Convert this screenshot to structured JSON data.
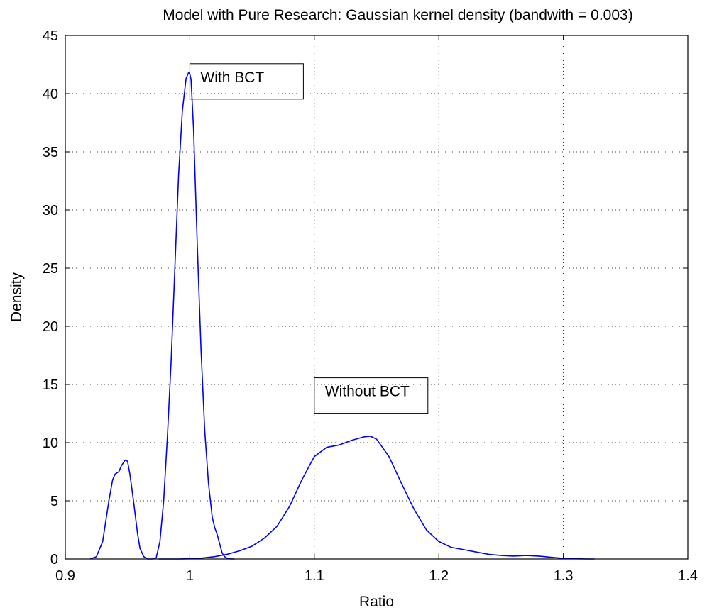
{
  "chart_data": {
    "type": "line",
    "title": "Model with Pure Research: Gaussian kernel density (bandwith = 0.003)",
    "xlabel": "Ratio",
    "ylabel": "Density",
    "xlim": [
      0.9,
      1.4
    ],
    "ylim": [
      0,
      45
    ],
    "xticks": [
      "0.9",
      "1",
      "1.1",
      "1.2",
      "1.3",
      "1.4"
    ],
    "yticks": [
      "0",
      "5",
      "10",
      "15",
      "20",
      "25",
      "30",
      "35",
      "40",
      "45"
    ],
    "grid": true,
    "line_color": "#0000ff",
    "annotations": [
      {
        "text": "With BCT",
        "x": 1.0,
        "y": 40.5
      },
      {
        "text": "Without BCT",
        "x": 1.1,
        "y": 13.5
      }
    ],
    "series": [
      {
        "x": [
          0.92,
          0.925,
          0.93,
          0.935,
          0.938,
          0.94,
          0.943,
          0.945,
          0.948,
          0.95,
          0.952,
          0.955,
          0.958,
          0.96,
          0.963,
          0.966,
          0.97,
          0.973,
          0.976,
          0.979,
          0.982,
          0.985,
          0.988,
          0.991,
          0.994,
          0.997,
          0.999,
          1.0,
          1.001,
          1.003,
          1.006,
          1.009,
          1.012,
          1.015,
          1.018,
          1.02,
          1.022,
          1.024,
          1.026,
          1.028,
          1.03,
          1.033,
          1.036
        ],
        "y": [
          0,
          0.2,
          1.5,
          5,
          6.8,
          7.3,
          7.5,
          8,
          8.5,
          8.4,
          7.2,
          4.8,
          2.2,
          0.9,
          0.2,
          0,
          0,
          0.1,
          1.5,
          5,
          10.5,
          17,
          25,
          33,
          38.5,
          41.3,
          41.8,
          41.7,
          41.2,
          37,
          27,
          18,
          11,
          6.5,
          3.6,
          2.7,
          2.1,
          1.3,
          0.5,
          0.2,
          0.05,
          0,
          0
        ]
      },
      {
        "x": [
          0.975,
          0.99,
          1.0,
          1.01,
          1.02,
          1.03,
          1.04,
          1.05,
          1.06,
          1.07,
          1.08,
          1.09,
          1.1,
          1.11,
          1.12,
          1.13,
          1.14,
          1.145,
          1.15,
          1.16,
          1.17,
          1.18,
          1.19,
          1.2,
          1.21,
          1.22,
          1.23,
          1.24,
          1.25,
          1.26,
          1.27,
          1.28,
          1.29,
          1.3,
          1.31,
          1.32,
          1.325
        ],
        "y": [
          0,
          0,
          0.02,
          0.08,
          0.2,
          0.4,
          0.7,
          1.1,
          1.8,
          2.8,
          4.5,
          6.8,
          8.8,
          9.6,
          9.8,
          10.2,
          10.5,
          10.55,
          10.3,
          8.8,
          6.5,
          4.3,
          2.5,
          1.5,
          1.0,
          0.8,
          0.6,
          0.4,
          0.3,
          0.25,
          0.3,
          0.25,
          0.15,
          0.05,
          0.02,
          0,
          0
        ]
      }
    ]
  }
}
